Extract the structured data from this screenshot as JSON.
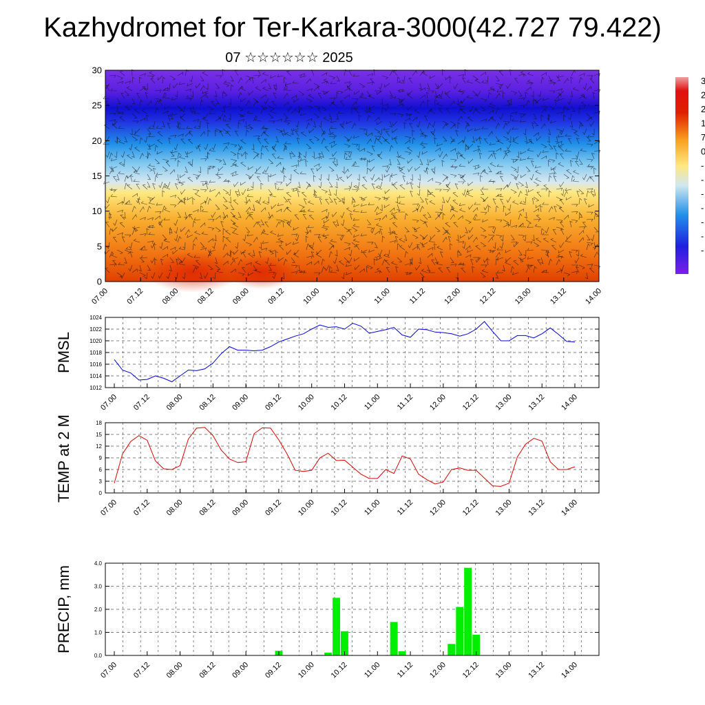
{
  "title": "Kazhydromet for Ter-Karkara-3000(42.727 79.422)",
  "subtitle": "07 ☆☆☆☆☆☆ 2025",
  "colors": {
    "pmsl_line": "#0000dd",
    "temp_line": "#dd0000",
    "precip_bar": "#00ee00",
    "grid": "#555555"
  },
  "chart_data": [
    {
      "type": "heatmap",
      "id": "cross-section",
      "ylim": [
        0,
        30
      ],
      "yticks": [
        "0",
        "5",
        "10",
        "15",
        "20",
        "25",
        "30"
      ],
      "xticks": [
        "07.00",
        "07.12",
        "08.00",
        "08.12",
        "09.00",
        "09.12",
        "10.00",
        "10.12",
        "11.00",
        "11.12",
        "12.00",
        "12.12",
        "13.00",
        "13.12",
        "14.00"
      ],
      "overlay": "wind barbs",
      "colorbar_labels": [
        "3",
        "2",
        "2",
        "1",
        "7",
        "0",
        "-",
        "-",
        "-",
        "-",
        "-",
        "-",
        "-"
      ]
    },
    {
      "type": "line",
      "id": "pmsl",
      "ylabel": "PMSL",
      "ylim": [
        1012,
        1024
      ],
      "yticks": [
        "1012",
        "1014",
        "1016",
        "1018",
        "1020",
        "1022",
        "1024"
      ],
      "xticks": [
        "07.00",
        "07.12",
        "08.00",
        "08.12",
        "09.00",
        "09.12",
        "10.00",
        "10.12",
        "11.00",
        "11.12",
        "12.00",
        "12.12",
        "13.00",
        "13.12",
        "14.00"
      ],
      "values": [
        1016.8,
        1015.0,
        1014.5,
        1013.3,
        1013.4,
        1014.0,
        1013.6,
        1013.0,
        1014.0,
        1015.0,
        1014.9,
        1015.2,
        1016.2,
        1017.8,
        1019.0,
        1018.4,
        1018.4,
        1018.3,
        1018.4,
        1019.0,
        1019.8,
        1020.3,
        1020.8,
        1021.2,
        1022.0,
        1022.7,
        1022.3,
        1022.4,
        1022.0,
        1023.0,
        1022.5,
        1021.3,
        1021.6,
        1021.9,
        1022.3,
        1021.0,
        1020.6,
        1022.0,
        1021.9,
        1021.5,
        1021.4,
        1021.2,
        1020.8,
        1021.2,
        1022.0,
        1023.3,
        1021.6,
        1020.0,
        1020.0,
        1020.9,
        1020.9,
        1020.5,
        1021.2,
        1022.2,
        1021.1,
        1019.9,
        1019.8
      ]
    },
    {
      "type": "line",
      "id": "temp",
      "ylabel": "TEMP at 2 M",
      "ylim": [
        0,
        18
      ],
      "yticks": [
        "0",
        "3",
        "6",
        "9",
        "12",
        "15",
        "18"
      ],
      "xticks": [
        "07.00",
        "07.12",
        "08.00",
        "08.12",
        "09.00",
        "09.12",
        "10.00",
        "10.12",
        "11.00",
        "11.12",
        "12.00",
        "12.12",
        "13.00",
        "13.12",
        "14.00"
      ],
      "values": [
        2.5,
        10.0,
        13.2,
        14.7,
        13.5,
        8.2,
        6.2,
        6.0,
        7.0,
        13.8,
        16.6,
        16.8,
        14.7,
        11.0,
        8.7,
        7.8,
        8.0,
        15.2,
        16.7,
        16.6,
        13.6,
        10.0,
        5.8,
        5.5,
        5.8,
        9.0,
        10.2,
        8.3,
        8.4,
        6.6,
        4.8,
        3.7,
        3.7,
        6.0,
        5.0,
        9.5,
        8.7,
        4.8,
        3.4,
        2.3,
        2.8,
        6.0,
        6.4,
        5.8,
        5.8,
        3.8,
        1.8,
        1.7,
        2.5,
        9.2,
        12.5,
        14.0,
        13.3,
        8.0,
        6.0,
        6.0,
        6.7
      ]
    },
    {
      "type": "bar",
      "id": "precip",
      "ylabel": "PRECIP, mm",
      "ylim": [
        0,
        4
      ],
      "yticks": [
        "0.0",
        "1.0",
        "2.0",
        "3.0",
        "4.0"
      ],
      "xticks": [
        "07.00",
        "07.12",
        "08.00",
        "08.12",
        "09.00",
        "09.12",
        "10.00",
        "10.12",
        "11.00",
        "11.12",
        "12.00",
        "12.12",
        "13.00",
        "13.12",
        "14.00"
      ],
      "values": [
        0,
        0,
        0,
        0,
        0,
        0,
        0,
        0,
        0,
        0,
        0,
        0,
        0,
        0,
        0,
        0,
        0,
        0,
        0,
        0,
        0.2,
        0,
        0,
        0,
        0,
        0.02,
        0.12,
        2.5,
        1.05,
        0,
        0,
        0,
        0,
        0,
        1.45,
        0.18,
        0,
        0,
        0,
        0,
        0,
        0.5,
        2.1,
        3.8,
        0.9,
        0,
        0,
        0,
        0,
        0,
        0,
        0,
        0,
        0,
        0,
        0,
        0
      ]
    }
  ]
}
